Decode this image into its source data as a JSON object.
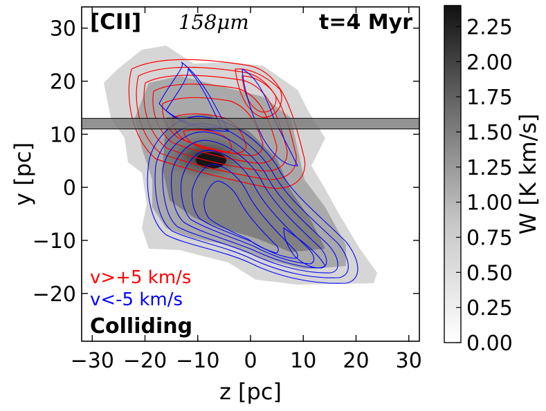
{
  "chart_data": {
    "type": "heatmap",
    "title_left_bold": "[CII]",
    "title_left_math": "158μm",
    "title_right": "t=4 Myr",
    "xlabel": "z [pc]",
    "ylabel": "y [pc]",
    "xlim": [
      -32,
      32
    ],
    "ylim": [
      -29,
      34
    ],
    "xticks": [
      "−30",
      "−20",
      "−10",
      "0",
      "10",
      "20",
      "30"
    ],
    "xtick_values": [
      -30,
      -20,
      -10,
      0,
      10,
      20,
      30
    ],
    "yticks": [
      "30",
      "20",
      "10",
      "0",
      "−10",
      "−20"
    ],
    "ytick_values": [
      30,
      20,
      10,
      0,
      -10,
      -20
    ],
    "colorbar": {
      "label": "W [K km/s]",
      "range": [
        0.0,
        2.4
      ],
      "ticks": [
        "2.25",
        "2.00",
        "1.75",
        "1.50",
        "1.25",
        "1.00",
        "0.75",
        "0.50",
        "0.25",
        "0.00"
      ],
      "tick_values": [
        2.25,
        2.0,
        1.75,
        1.5,
        1.25,
        1.0,
        0.75,
        0.5,
        0.25,
        0.0
      ]
    },
    "band": {
      "y_range": [
        11,
        13
      ]
    },
    "legend": [
      {
        "label": "v>+5 km/s",
        "color": "#ff0000"
      },
      {
        "label": "v<-5 km/s",
        "color": "#0000ff"
      }
    ],
    "annotation": "Colliding",
    "colors": {
      "red_contours": "#ff0000",
      "blue_contours": "#0000ff"
    }
  }
}
